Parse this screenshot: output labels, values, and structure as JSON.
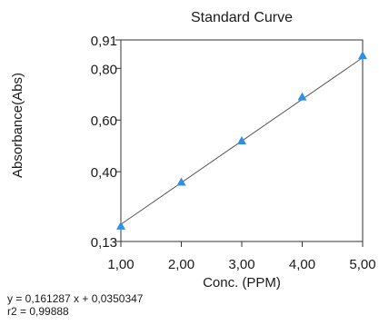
{
  "chart_data": {
    "type": "scatter",
    "title": "Standard Curve",
    "xlabel": "Conc. (PPM)",
    "ylabel": "Absorbance(Abs)",
    "xlim": [
      1.0,
      5.0
    ],
    "ylim": [
      0.13,
      0.91
    ],
    "x_ticks": [
      1.0,
      2.0,
      3.0,
      4.0,
      5.0
    ],
    "x_tick_labels": [
      "1,00",
      "2,00",
      "3,00",
      "4,00",
      "5,00"
    ],
    "y_ticks": [
      0.13,
      0.4,
      0.6,
      0.8,
      0.91
    ],
    "y_tick_labels": [
      "0,13",
      "0,40",
      "0,60",
      "0,80",
      "0,91"
    ],
    "grid": false,
    "legend": false,
    "series": [
      {
        "x": [
          1.0,
          2.0,
          3.0,
          4.0,
          5.0
        ],
        "y": [
          0.19,
          0.36,
          0.52,
          0.69,
          0.85
        ],
        "marker": "triangle",
        "color": "#2f8fe6"
      }
    ],
    "fit_line": {
      "slope": 0.161287,
      "intercept": 0.0350347,
      "color": "#555555"
    },
    "annotations": [
      "y = 0,161287 x + 0,0350347",
      "r2 = 0,99888"
    ]
  }
}
